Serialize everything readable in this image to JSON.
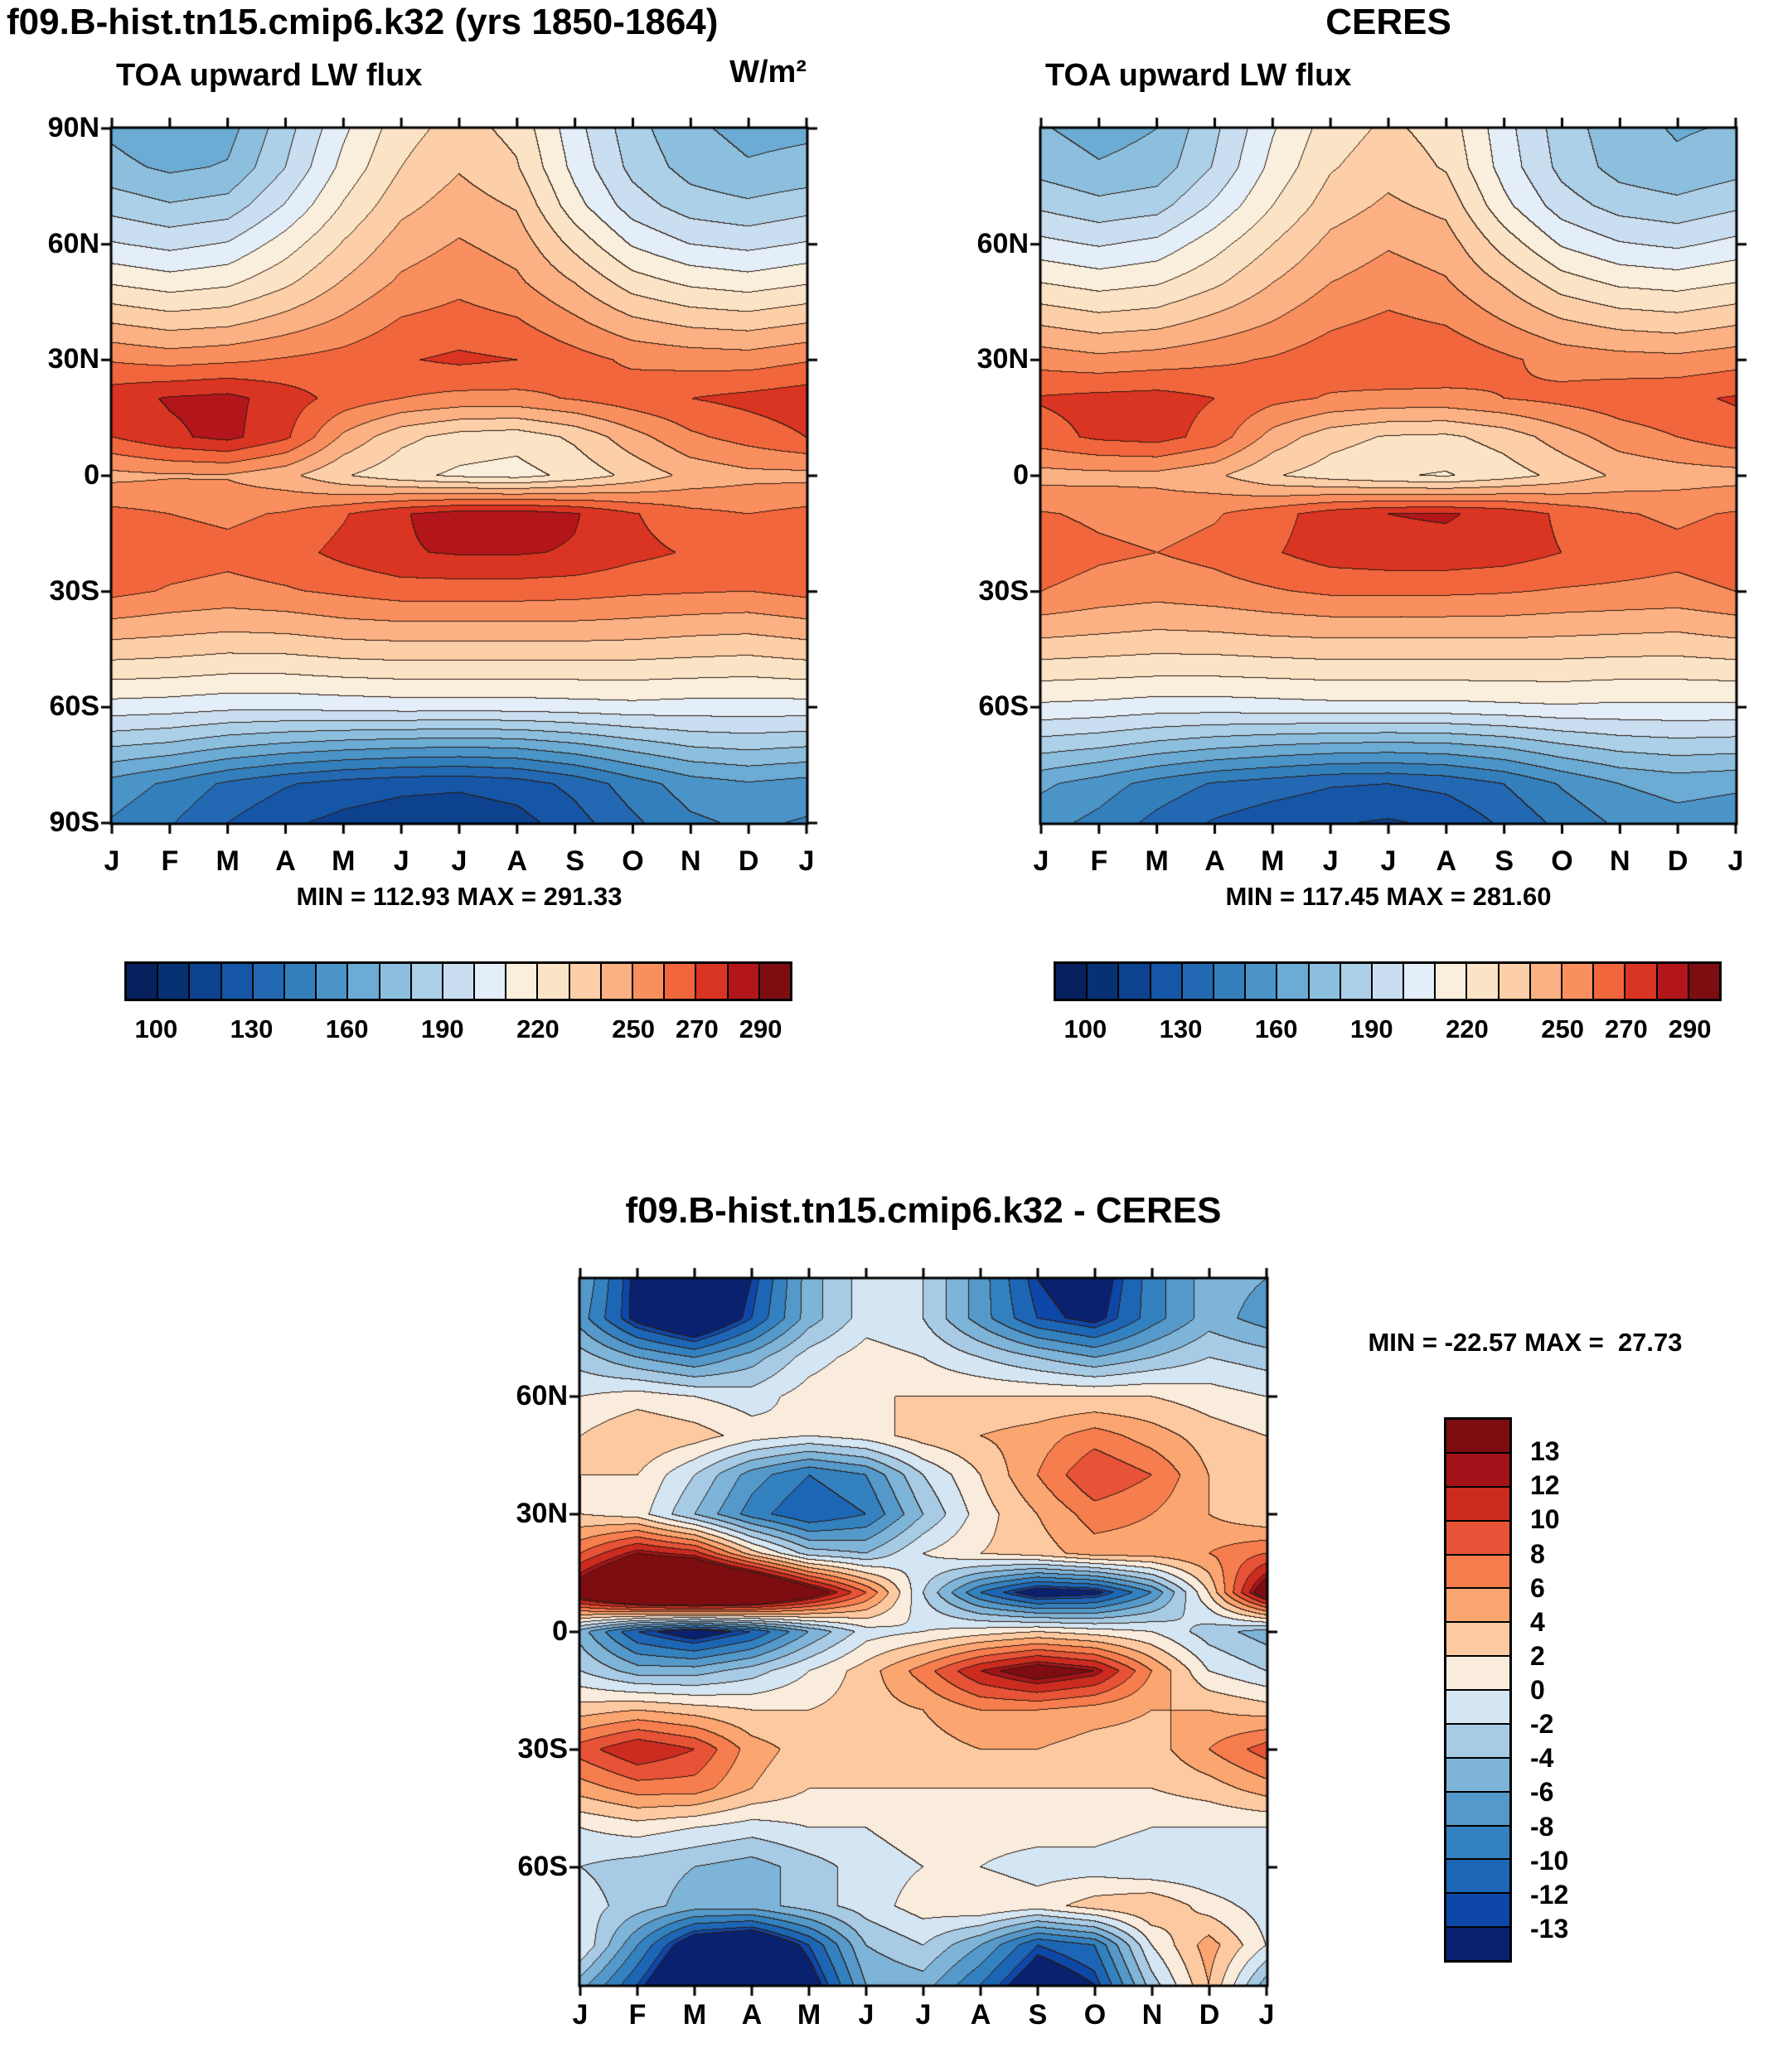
{
  "panels": {
    "model": {
      "title": "f09.B-hist.tn15.cmip6.k32 (yrs 1850-1864)",
      "subtitle": "TOA upward LW flux",
      "units": "W/m²",
      "stats": "MIN = 112.93 MAX = 291.33"
    },
    "ceres": {
      "title": "CERES",
      "subtitle": "TOA upward LW flux",
      "stats": "MIN = 117.45 MAX = 281.60"
    },
    "diff": {
      "title": "f09.B-hist.tn15.cmip6.k32 - CERES",
      "stats": "MIN = -22.57 MAX =  27.73"
    }
  },
  "scales": {
    "flux": {
      "levels": [
        100,
        110,
        120,
        130,
        140,
        150,
        160,
        170,
        180,
        190,
        200,
        210,
        220,
        230,
        240,
        250,
        260,
        270,
        280,
        290
      ],
      "colors": [
        "#06215e",
        "#083174",
        "#0d428f",
        "#1656a6",
        "#2268b2",
        "#327fbc",
        "#4a94c8",
        "#6babd4",
        "#8cbfde",
        "#abd0e8",
        "#c9def0",
        "#e3eef8",
        "#f9efdc",
        "#fbe3c6",
        "#fccfa8",
        "#fbb183",
        "#f98f5e",
        "#f2663d",
        "#da3423",
        "#b2161b",
        "#7d0d11"
      ],
      "tick_values": [
        100,
        130,
        160,
        190,
        220,
        250,
        270,
        290
      ],
      "tick_labels": [
        "100",
        "130",
        "160",
        "190",
        "220",
        "250",
        "270",
        "290"
      ]
    },
    "diff": {
      "levels": [
        -13,
        -12,
        -10,
        -8,
        -6,
        -4,
        -2,
        0,
        2,
        4,
        6,
        8,
        10,
        12,
        13
      ],
      "colors": [
        "#0a2170",
        "#0d47a8",
        "#1c66b5",
        "#3381bf",
        "#5499ca",
        "#7db4d8",
        "#a7cbe5",
        "#d4e5f3",
        "#f9ecdc",
        "#fcc9a0",
        "#fba571",
        "#f67d4e",
        "#e65336",
        "#cc2b20",
        "#a5131a",
        "#7d0d11"
      ],
      "tick_values": [
        13,
        12,
        10,
        8,
        6,
        4,
        2,
        0,
        -2,
        -4,
        -6,
        -8,
        -10,
        -12,
        -13
      ],
      "tick_labels": [
        "13",
        "12",
        "10",
        "8",
        "6",
        "4",
        "2",
        "0",
        "-2",
        "-4",
        "-6",
        "-8",
        "-10",
        "-12",
        "-13"
      ]
    }
  },
  "chart_data": [
    {
      "id": "model",
      "type": "heatmap",
      "title": "f09.B-hist.tn15.cmip6.k32 (yrs 1850-1864)",
      "subtitle": "TOA upward LW flux",
      "units": "W/m²",
      "min": 112.93,
      "max": 291.33,
      "scale": "flux",
      "x_labels": [
        "J",
        "F",
        "M",
        "A",
        "M",
        "J",
        "J",
        "A",
        "S",
        "O",
        "N",
        "D",
        "J"
      ],
      "lat_values": [
        90,
        80,
        70,
        60,
        50,
        40,
        30,
        20,
        10,
        0,
        -10,
        -20,
        -30,
        -40,
        -50,
        -60,
        -70,
        -80,
        -90
      ],
      "y_tick_values": [
        90,
        60,
        30,
        0,
        -30,
        -60,
        -90
      ],
      "y_tick_labels": [
        "90N",
        "60N",
        "30N",
        "0",
        "30S",
        "60S",
        "90S"
      ],
      "values": [
        [
          168,
          162,
          166,
          186,
          208,
          226,
          234,
          227,
          204,
          184,
          172,
          167,
          168
        ],
        [
          173,
          168,
          171,
          190,
          213,
          230,
          239,
          231,
          207,
          187,
          176,
          171,
          173
        ],
        [
          186,
          181,
          184,
          201,
          221,
          237,
          245,
          239,
          214,
          195,
          185,
          182,
          186
        ],
        [
          201,
          197,
          201,
          215,
          231,
          245,
          251,
          246,
          227,
          209,
          200,
          197,
          201
        ],
        [
          219,
          215,
          218,
          228,
          241,
          252,
          257,
          252,
          240,
          225,
          218,
          215,
          219
        ],
        [
          239,
          235,
          237,
          244,
          252,
          261,
          264,
          261,
          252,
          242,
          237,
          235,
          239
        ],
        [
          259,
          256,
          258,
          261,
          264,
          269,
          272,
          270,
          264,
          258,
          256,
          255,
          259
        ],
        [
          276,
          281,
          283,
          275,
          266,
          260,
          257,
          257,
          261,
          266,
          270,
          273,
          276
        ],
        [
          270,
          278,
          283,
          272,
          248,
          233,
          226,
          224,
          232,
          246,
          258,
          264,
          270
        ],
        [
          247,
          249,
          249,
          243,
          231,
          223,
          218,
          216,
          223,
          233,
          243,
          247,
          247
        ],
        [
          263,
          260,
          258,
          261,
          269,
          279,
          285,
          286,
          281,
          271,
          263,
          260,
          263
        ],
        [
          269,
          265,
          263,
          266,
          273,
          279,
          281,
          281,
          279,
          273,
          269,
          266,
          269
        ],
        [
          263,
          259,
          257,
          259,
          262,
          265,
          265,
          265,
          264,
          262,
          261,
          260,
          263
        ],
        [
          245,
          243,
          241,
          242,
          245,
          246,
          246,
          246,
          246,
          245,
          243,
          242,
          245
        ],
        [
          226,
          225,
          223,
          223,
          225,
          226,
          226,
          226,
          226,
          226,
          225,
          224,
          226
        ],
        [
          206,
          205,
          203,
          203,
          204,
          205,
          205,
          205,
          206,
          207,
          206,
          206,
          206
        ],
        [
          181,
          178,
          172,
          168,
          165,
          163,
          162,
          163,
          168,
          175,
          181,
          183,
          181
        ],
        [
          156,
          148,
          138,
          131,
          126,
          123,
          122,
          125,
          133,
          145,
          155,
          159,
          156
        ],
        [
          149,
          141,
          130,
          122,
          117,
          114,
          113,
          116,
          126,
          138,
          148,
          152,
          149
        ]
      ]
    },
    {
      "id": "ceres",
      "type": "heatmap",
      "title": "CERES",
      "subtitle": "TOA upward LW flux",
      "min": 117.45,
      "max": 281.6,
      "scale": "flux",
      "x_labels": [
        "J",
        "F",
        "M",
        "A",
        "M",
        "J",
        "J",
        "A",
        "S",
        "O",
        "N",
        "D",
        "J"
      ],
      "lat_values": [
        90,
        80,
        70,
        60,
        50,
        40,
        30,
        20,
        10,
        0,
        -10,
        -20,
        -30,
        -40,
        -50,
        -60,
        -70,
        -80,
        -90
      ],
      "y_tick_values": [
        60,
        30,
        0,
        -30,
        -60
      ],
      "y_tick_labels": [
        "60N",
        "30N",
        "0",
        "30S",
        "60S"
      ],
      "values": [
        [
          171,
          166,
          170,
          188,
          209,
          225,
          232,
          226,
          204,
          185,
          174,
          169,
          171
        ],
        [
          176,
          171,
          174,
          191,
          213,
          229,
          236,
          229,
          206,
          187,
          176,
          172,
          176
        ],
        [
          188,
          183,
          186,
          202,
          220,
          235,
          242,
          237,
          213,
          195,
          186,
          183,
          188
        ],
        [
          203,
          199,
          203,
          216,
          230,
          243,
          249,
          245,
          226,
          209,
          201,
          198,
          203
        ],
        [
          220,
          216,
          219,
          228,
          240,
          250,
          255,
          251,
          239,
          225,
          218,
          216,
          220
        ],
        [
          238,
          234,
          236,
          243,
          250,
          258,
          262,
          259,
          250,
          241,
          236,
          234,
          238
        ],
        [
          256,
          253,
          255,
          258,
          261,
          266,
          270,
          268,
          262,
          256,
          254,
          253,
          256
        ],
        [
          271,
          273,
          274,
          270,
          263,
          259,
          257,
          257,
          260,
          263,
          266,
          268,
          271
        ],
        [
          266,
          272,
          274,
          266,
          246,
          234,
          229,
          228,
          234,
          245,
          255,
          260,
          266
        ],
        [
          246,
          247,
          247,
          242,
          231,
          225,
          221,
          219,
          225,
          233,
          242,
          245,
          246
        ],
        [
          261,
          258,
          256,
          259,
          266,
          275,
          280,
          281,
          277,
          268,
          261,
          258,
          261
        ],
        [
          266,
          262,
          260,
          263,
          269,
          275,
          277,
          277,
          275,
          270,
          266,
          263,
          266
        ],
        [
          260,
          256,
          254,
          256,
          259,
          262,
          262,
          262,
          261,
          259,
          258,
          257,
          260
        ],
        [
          244,
          242,
          240,
          241,
          243,
          244,
          244,
          244,
          244,
          243,
          242,
          241,
          244
        ],
        [
          226,
          225,
          224,
          224,
          225,
          226,
          226,
          226,
          226,
          226,
          225,
          225,
          226
        ],
        [
          208,
          207,
          205,
          205,
          206,
          207,
          207,
          207,
          208,
          209,
          208,
          208,
          208
        ],
        [
          185,
          182,
          177,
          173,
          170,
          168,
          167,
          168,
          172,
          179,
          184,
          186,
          185
        ],
        [
          162,
          155,
          146,
          139,
          135,
          131,
          130,
          133,
          140,
          151,
          160,
          164,
          162
        ],
        [
          154,
          147,
          137,
          129,
          124,
          121,
          119,
          122,
          132,
          143,
          152,
          156,
          154
        ]
      ]
    },
    {
      "id": "diff",
      "type": "heatmap",
      "title": "f09.B-hist.tn15.cmip6.k32 - CERES",
      "min": -22.57,
      "max": 27.73,
      "scale": "diff",
      "x_labels": [
        "J",
        "F",
        "M",
        "A",
        "M",
        "J",
        "J",
        "A",
        "S",
        "O",
        "N",
        "D",
        "J"
      ],
      "lat_values": [
        90,
        80,
        70,
        60,
        50,
        40,
        30,
        20,
        10,
        0,
        -10,
        -20,
        -30,
        -40,
        -50,
        -60,
        -70,
        -80,
        -90
      ],
      "y_tick_values": [
        60,
        30,
        0,
        -30,
        -60
      ],
      "y_tick_labels": [
        "60N",
        "30N",
        "0",
        "30S",
        "60S"
      ],
      "values": [
        [
          -6,
          -14,
          -19,
          -13,
          -5,
          -1,
          -2,
          -7,
          -13,
          -15,
          -9,
          -5,
          -6
        ],
        [
          -7,
          -14,
          -18,
          -12,
          -5,
          -1,
          -2,
          -7,
          -12,
          -14,
          -9,
          -5,
          -7
        ],
        [
          -3,
          -6,
          -8,
          -5,
          -1,
          1,
          0,
          -2,
          -4,
          -6,
          -4,
          -2,
          -3
        ],
        [
          0,
          1,
          0,
          -1,
          1,
          2,
          2,
          2,
          2,
          2,
          2,
          1,
          0
        ],
        [
          2,
          4,
          3,
          1,
          0,
          1,
          3,
          4,
          5,
          7,
          5,
          3,
          2
        ],
        [
          2,
          2,
          -2,
          -7,
          -10,
          -8,
          -2,
          2,
          6,
          10,
          8,
          4,
          2
        ],
        [
          2,
          1,
          -4,
          -9,
          -12,
          -10,
          -4,
          1,
          4,
          7,
          6,
          4,
          2
        ],
        [
          8,
          13,
          11,
          3,
          -3,
          -4,
          0,
          2,
          3,
          5,
          5,
          6,
          8
        ],
        [
          16,
          24,
          27,
          24,
          16,
          8,
          -2,
          -10,
          -15,
          -14,
          -8,
          2,
          16
        ],
        [
          -5,
          -12,
          -15,
          -12,
          -6,
          -1,
          0,
          1,
          2,
          1,
          0,
          -3,
          -5
        ],
        [
          -2,
          -5,
          -5,
          -3,
          0,
          3,
          7,
          12,
          15,
          13,
          6,
          0,
          -2
        ],
        [
          3,
          4,
          3,
          2,
          2,
          3,
          4,
          6,
          6,
          5,
          4,
          4,
          3
        ],
        [
          9,
          12,
          10,
          5,
          3,
          3,
          3,
          4,
          4,
          3,
          3,
          6,
          9
        ],
        [
          5,
          7,
          7,
          4,
          2,
          2,
          2,
          2,
          2,
          2,
          2,
          3,
          5
        ],
        [
          0,
          1,
          0,
          -1,
          0,
          0,
          1,
          1,
          1,
          1,
          0,
          0,
          0
        ],
        [
          -2,
          -3,
          -4,
          -5,
          -3,
          -1,
          0,
          0,
          -1,
          -1,
          -2,
          -2,
          -2
        ],
        [
          -1,
          -3,
          -5,
          -5,
          -3,
          -1,
          1,
          2,
          1,
          3,
          4,
          1,
          -1
        ],
        [
          0,
          -8,
          -16,
          -18,
          -12,
          -4,
          -2,
          -6,
          -12,
          -10,
          0,
          5,
          0
        ],
        [
          -5,
          -12,
          -20,
          -22,
          -15,
          -6,
          -5,
          -10,
          -16,
          -13,
          -3,
          4,
          -5
        ]
      ]
    }
  ]
}
